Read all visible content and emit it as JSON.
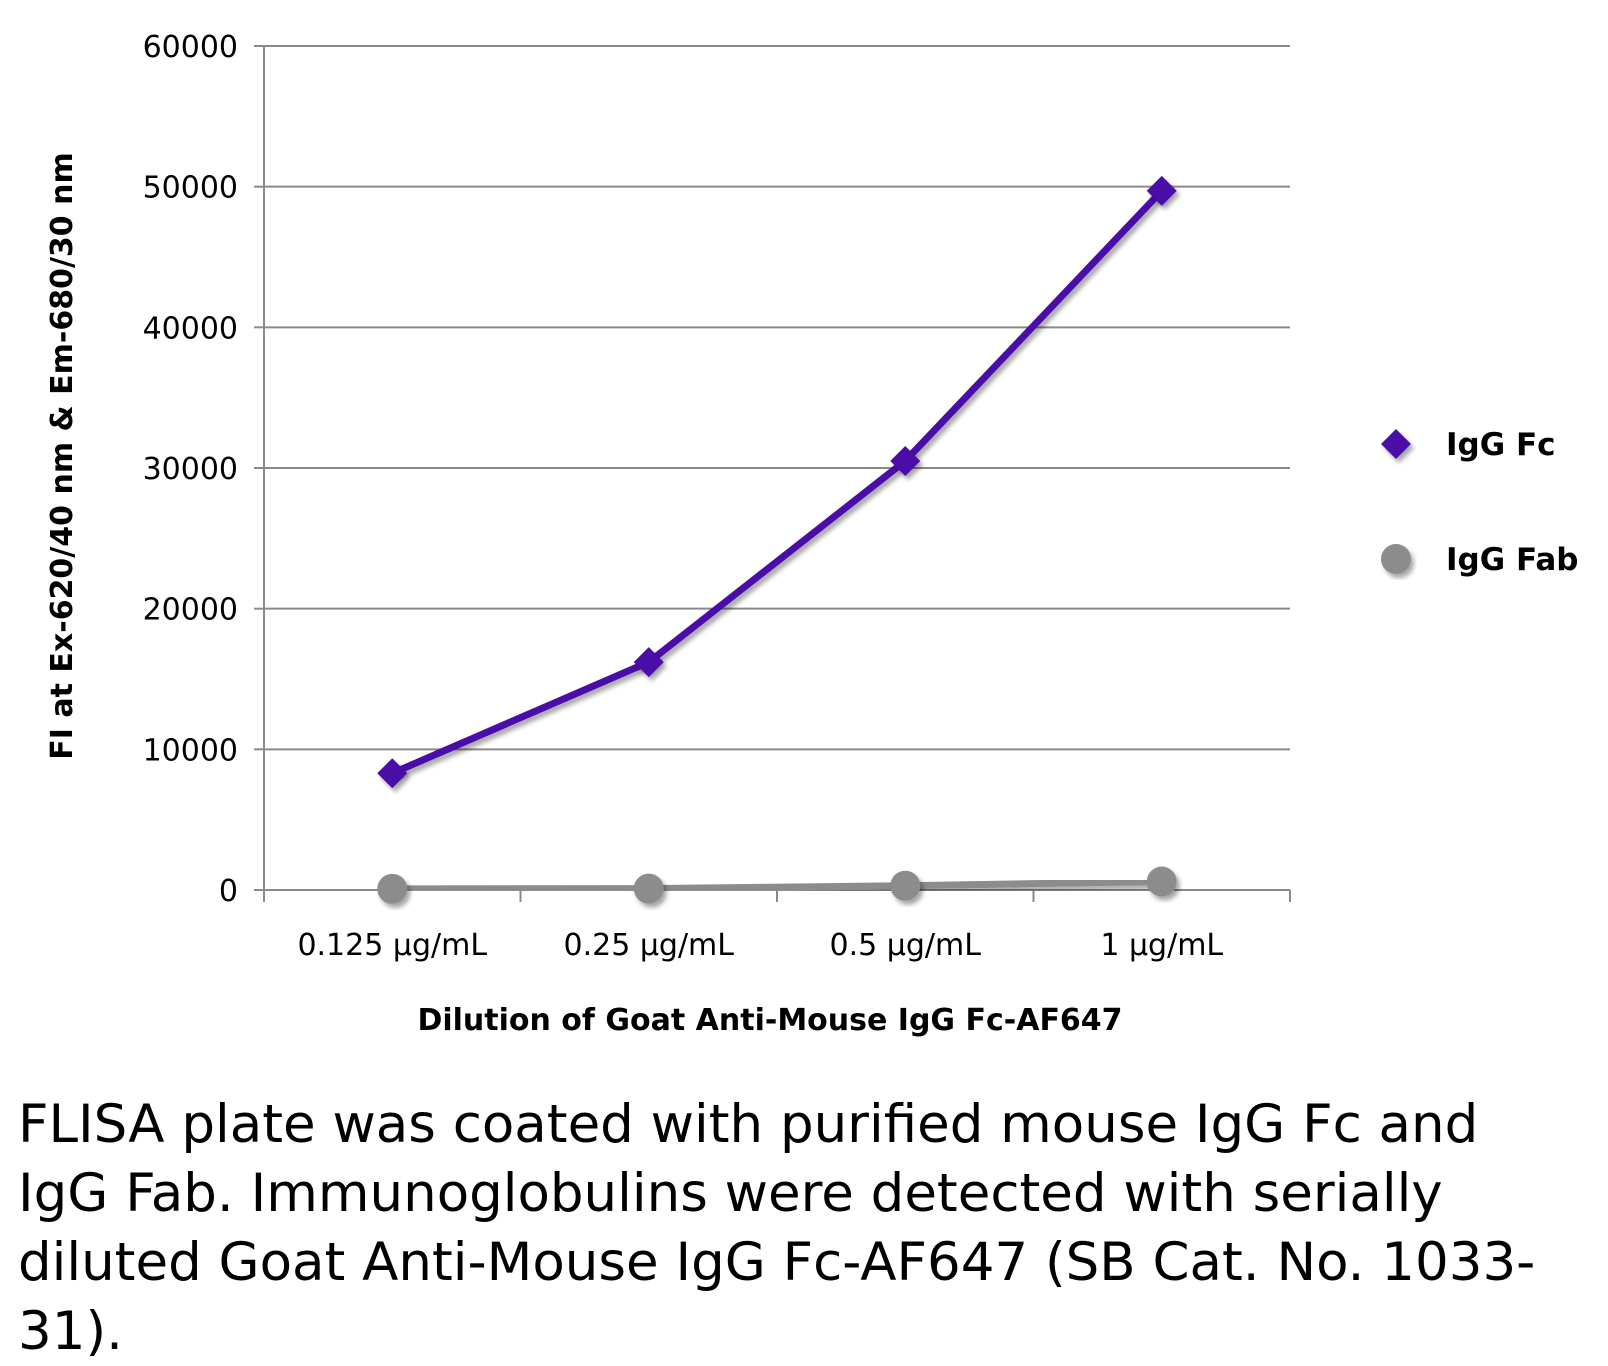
{
  "chart_data": {
    "type": "line",
    "title": "",
    "xlabel": "Dilution of Goat Anti-Mouse IgG Fc-AF647",
    "ylabel": "FI at Ex-620/40 nm & Em-680/30 nm",
    "categories": [
      "0.125 µg/mL",
      "0.25 µg/mL",
      "0.5 µg/mL",
      "1 µg/mL"
    ],
    "ylim": [
      0,
      60000
    ],
    "yticks": [
      0,
      10000,
      20000,
      30000,
      40000,
      50000,
      60000
    ],
    "grid": true,
    "legend_position": "right",
    "series": [
      {
        "name": "IgG Fc",
        "values": [
          8300,
          16200,
          30500,
          49700
        ],
        "color": "#4b0fa8",
        "marker": "diamond"
      },
      {
        "name": "IgG Fab",
        "values": [
          80,
          100,
          300,
          600
        ],
        "color": "#8c8c8c",
        "marker": "circle"
      }
    ]
  },
  "caption": "FLISA plate was coated with purified mouse IgG Fc and IgG Fab.  Immunoglobulins were detected with serially diluted Goat Anti-Mouse IgG Fc-AF647 (SB Cat. No. 1033-31)."
}
